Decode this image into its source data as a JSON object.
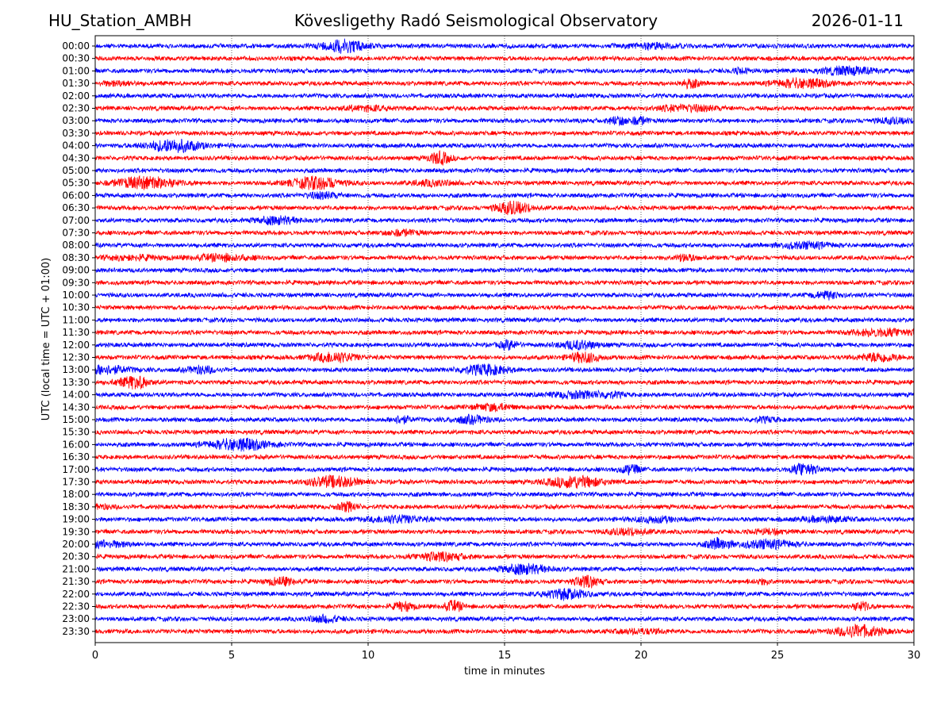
{
  "header": {
    "station": "HU_Station_AMBH",
    "title": "Kövesligethy Radó Seismological Observatory",
    "date": "2026-01-11"
  },
  "chart_data": {
    "type": "line",
    "chart_kind": "helicorder seismogram",
    "xlabel": "time in minutes",
    "ylabel": "UTC (local time = UTC + 01:00)",
    "xlim": [
      0,
      30
    ],
    "x_ticks": [
      0,
      5,
      10,
      15,
      20,
      25,
      30
    ],
    "grid": "vertical dotted at x ticks",
    "legend": "none",
    "trace_colors": [
      "#0000ff",
      "#ff0000"
    ],
    "rows": [
      "00:00",
      "00:30",
      "01:00",
      "01:30",
      "02:00",
      "02:30",
      "03:00",
      "03:30",
      "04:00",
      "04:30",
      "05:00",
      "05:30",
      "06:00",
      "06:30",
      "07:00",
      "07:30",
      "08:00",
      "08:30",
      "09:00",
      "09:30",
      "10:00",
      "10:30",
      "11:00",
      "11:30",
      "12:00",
      "12:30",
      "13:00",
      "13:30",
      "14:00",
      "14:30",
      "15:00",
      "15:30",
      "16:00",
      "16:30",
      "17:00",
      "17:30",
      "18:00",
      "18:30",
      "19:00",
      "19:30",
      "20:00",
      "20:30",
      "21:00",
      "21:30",
      "22:00",
      "22:30",
      "23:00",
      "23:30"
    ]
  }
}
